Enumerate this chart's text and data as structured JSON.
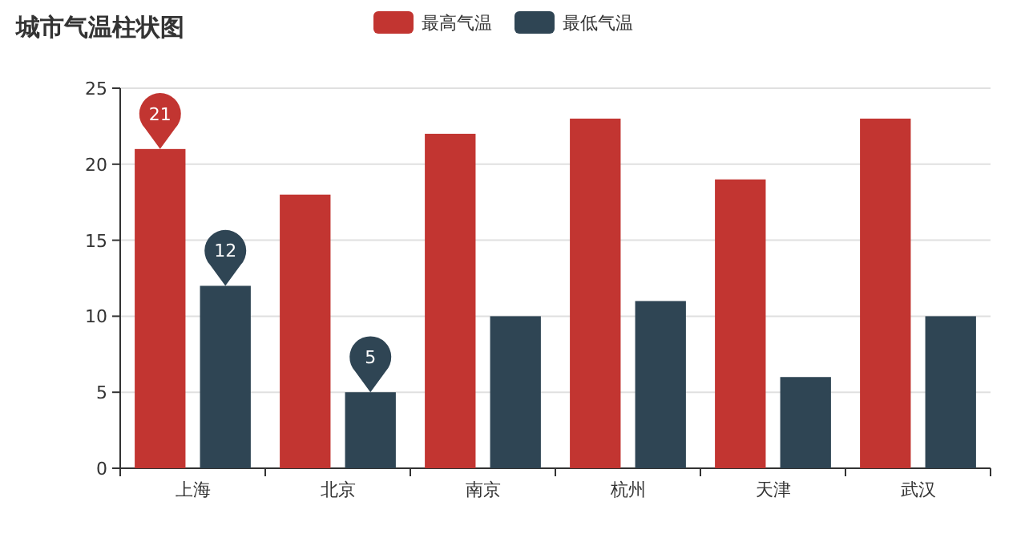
{
  "chart_data": {
    "type": "bar",
    "title": "城市气温柱状图",
    "categories": [
      "上海",
      "北京",
      "南京",
      "杭州",
      "天津",
      "武汉"
    ],
    "series": [
      {
        "name": "最高气温",
        "color": "#c23531",
        "values": [
          21,
          18,
          22,
          23,
          19,
          23
        ]
      },
      {
        "name": "最低气温",
        "color": "#2f4554",
        "values": [
          12,
          5,
          10,
          11,
          6,
          10
        ]
      }
    ],
    "ylim": [
      0,
      25
    ],
    "yticks": [
      0,
      5,
      10,
      15,
      20,
      25
    ],
    "grid": "y",
    "legend": "top",
    "annotations": [
      {
        "text": "21",
        "x": "上海",
        "y": 21
      },
      {
        "text": "12",
        "x": "上海",
        "y": 12
      },
      {
        "text": "5",
        "x": "北京",
        "y": 5
      }
    ]
  }
}
